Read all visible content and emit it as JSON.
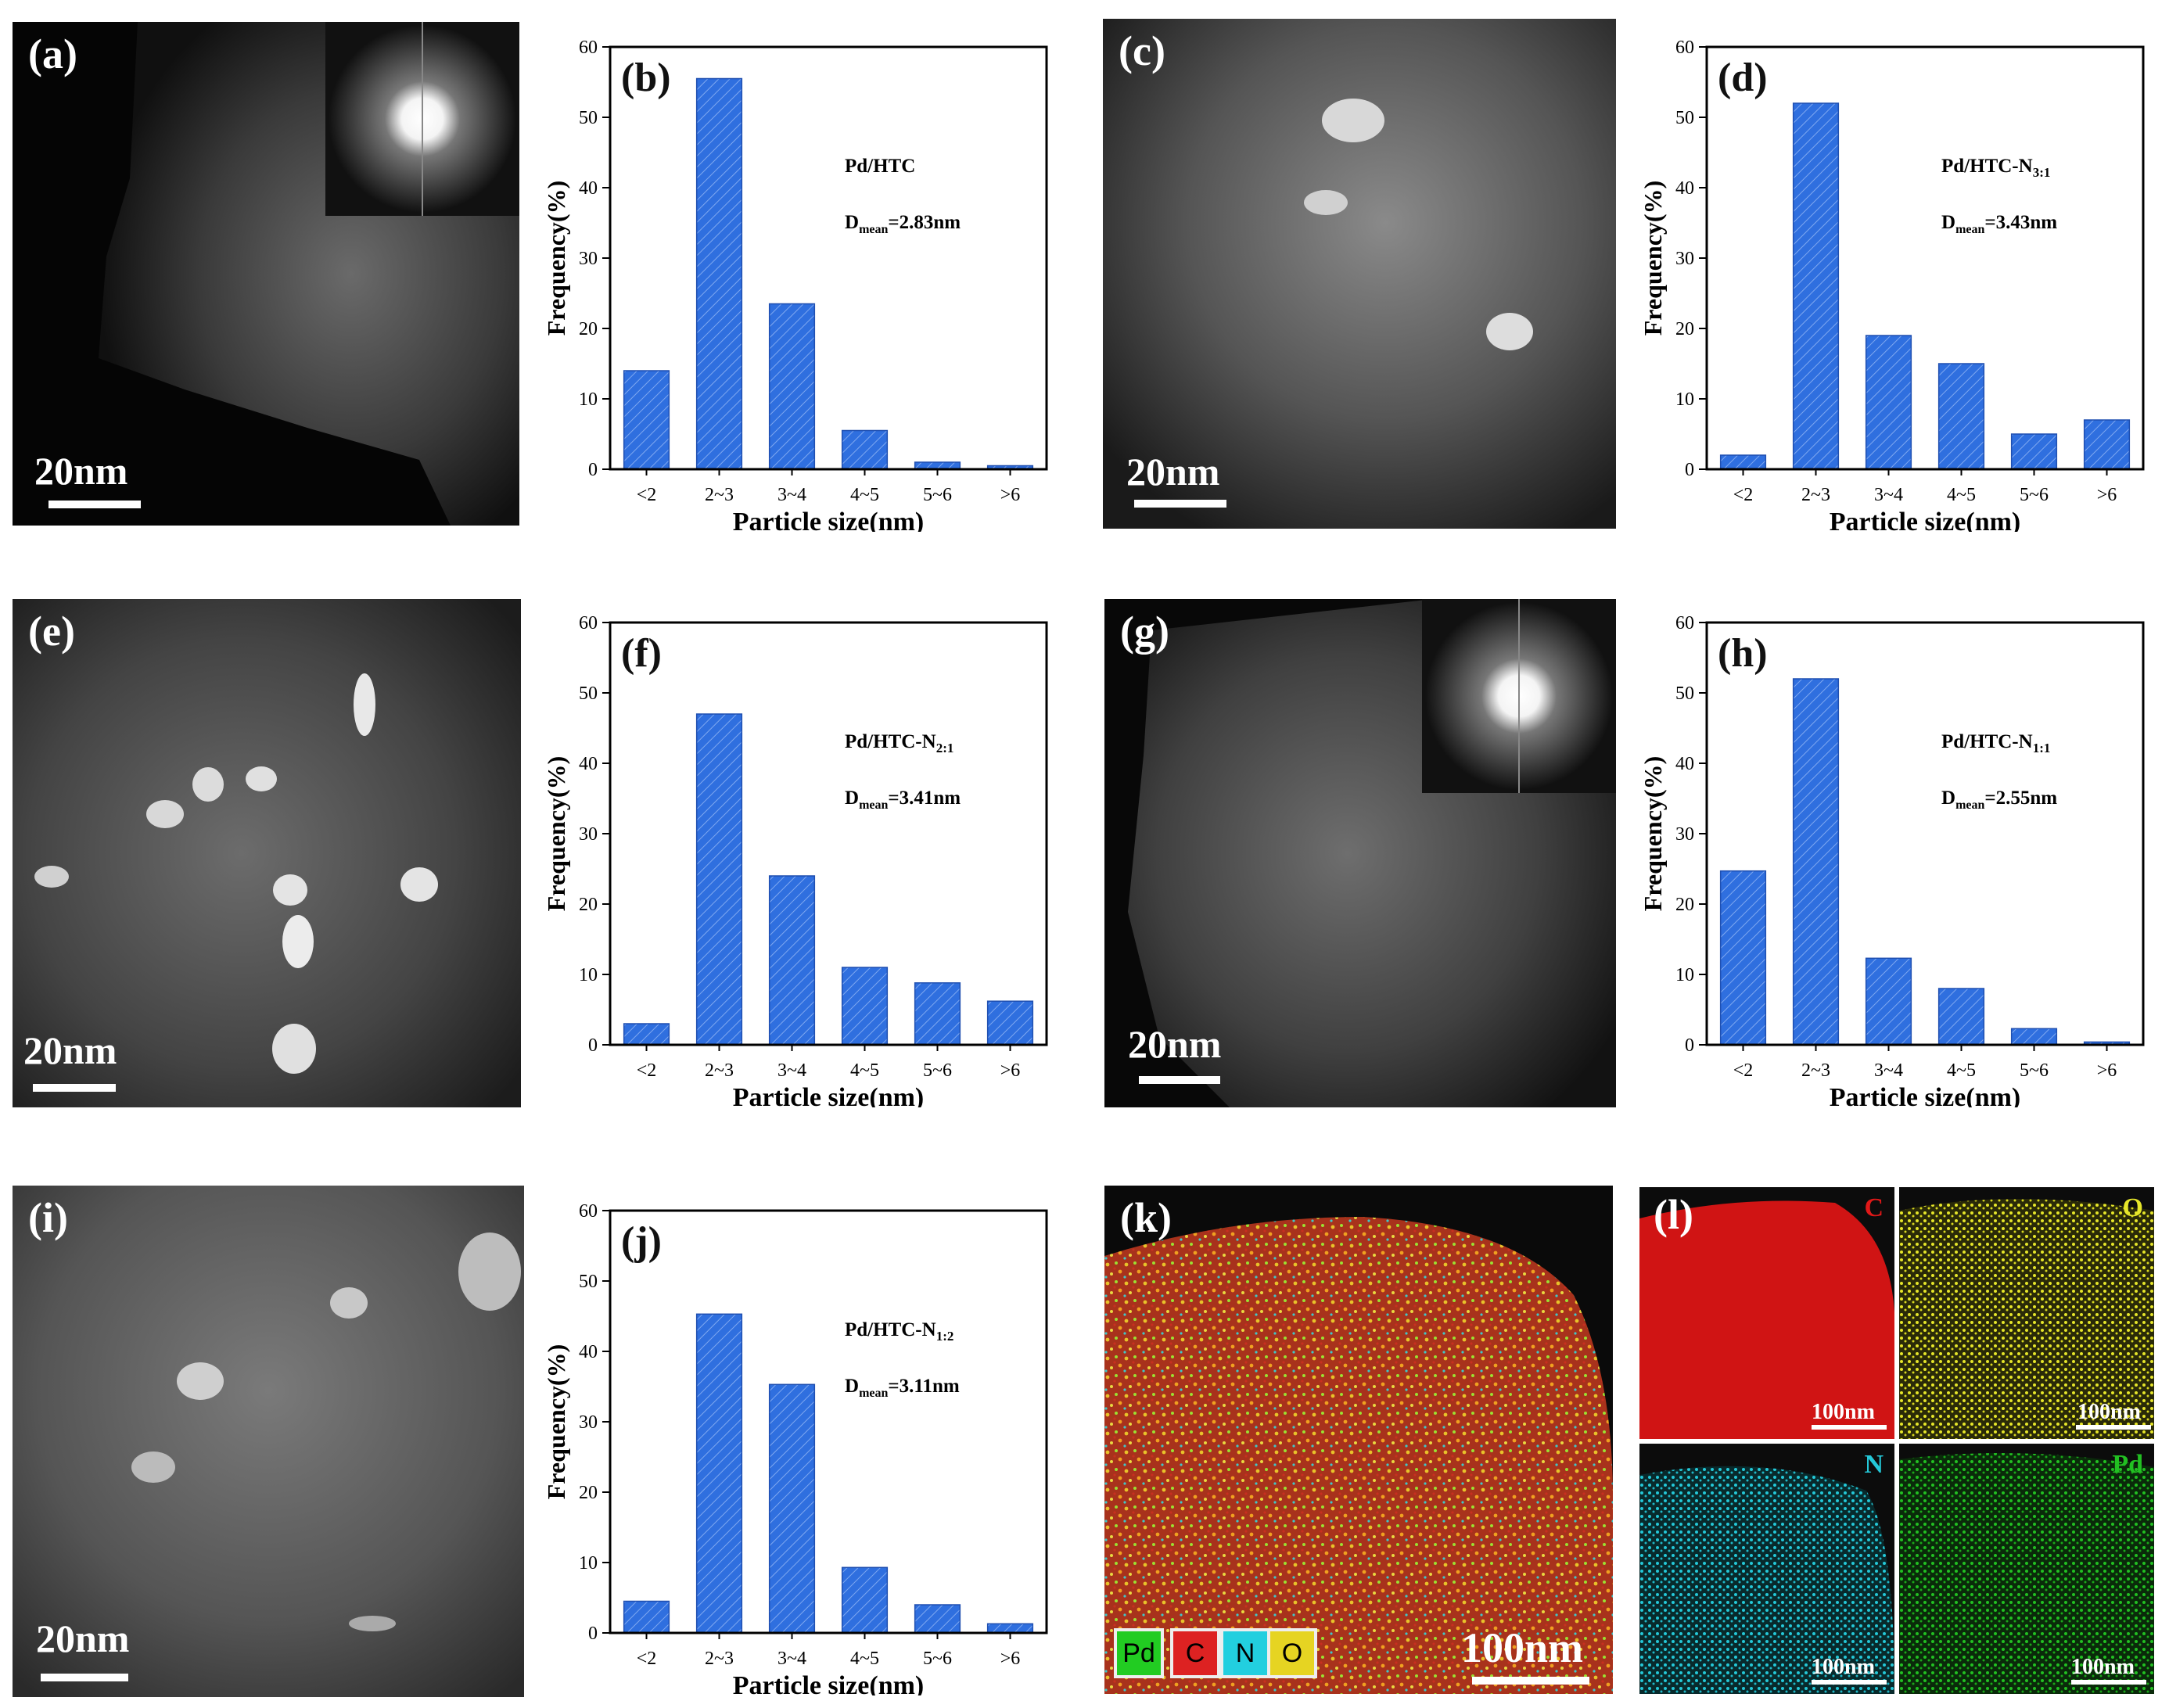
{
  "panels": {
    "a": {
      "label": "(a)",
      "scale": "20nm"
    },
    "c": {
      "label": "(c)",
      "scale": "20nm"
    },
    "e": {
      "label": "(e)",
      "scale": "20nm"
    },
    "g": {
      "label": "(g)",
      "scale": "20nm"
    },
    "i": {
      "label": "(i)",
      "scale": "20nm"
    },
    "k": {
      "label": "(k)",
      "scale": "100nm",
      "legend": [
        "Pd",
        "C",
        "N",
        "O"
      ]
    },
    "l": {
      "label": "(l)",
      "maps": [
        {
          "element": "C",
          "scale": "100nm",
          "color": "#e01818"
        },
        {
          "element": "O",
          "scale": "100nm",
          "color": "#e6e62a"
        },
        {
          "element": "N",
          "scale": "100nm",
          "color": "#24c8d8"
        },
        {
          "element": "Pd",
          "scale": "100nm",
          "color": "#22c022"
        }
      ]
    }
  },
  "chart_data": [
    {
      "id": "b",
      "type": "bar",
      "label": "(b)",
      "categories": [
        "<2",
        "2~3",
        "3~4",
        "4~5",
        "5~6",
        ">6"
      ],
      "values": [
        14,
        55.5,
        23.5,
        5.5,
        1,
        0.5
      ],
      "xlabel": "Particle size(nm)",
      "ylabel": "Frequency(%)",
      "ylim": [
        0,
        60
      ],
      "yticks": [
        0,
        10,
        20,
        30,
        40,
        50,
        60
      ],
      "sample": "Pd/HTC",
      "subscript": "",
      "dmean_value": "=2.83nm",
      "bar_color": "#2f6fdf"
    },
    {
      "id": "d",
      "type": "bar",
      "label": "(d)",
      "categories": [
        "<2",
        "2~3",
        "3~4",
        "4~5",
        "5~6",
        ">6"
      ],
      "values": [
        2,
        52,
        19,
        15,
        5,
        7
      ],
      "xlabel": "Particle size(nm)",
      "ylabel": "Frequency(%)",
      "ylim": [
        0,
        60
      ],
      "yticks": [
        0,
        10,
        20,
        30,
        40,
        50,
        60
      ],
      "sample": "Pd/HTC-N",
      "subscript": "3:1",
      "dmean_value": "=3.43nm",
      "bar_color": "#2f6fdf"
    },
    {
      "id": "f",
      "type": "bar",
      "label": "(f)",
      "categories": [
        "<2",
        "2~3",
        "3~4",
        "4~5",
        "5~6",
        ">6"
      ],
      "values": [
        3,
        47,
        24,
        11,
        8.8,
        6.2
      ],
      "xlabel": "Particle size(nm)",
      "ylabel": "Frequency(%)",
      "ylim": [
        0,
        60
      ],
      "yticks": [
        0,
        10,
        20,
        30,
        40,
        50,
        60
      ],
      "sample": "Pd/HTC-N",
      "subscript": "2:1",
      "dmean_value": "=3.41nm",
      "bar_color": "#2f6fdf"
    },
    {
      "id": "h",
      "type": "bar",
      "label": "(h)",
      "categories": [
        "<2",
        "2~3",
        "3~4",
        "4~5",
        "5~6",
        ">6"
      ],
      "values": [
        24.7,
        52,
        12.3,
        8,
        2.3,
        0.4
      ],
      "xlabel": "Particle size(nm)",
      "ylabel": "Frequency(%)",
      "ylim": [
        0,
        60
      ],
      "yticks": [
        0,
        10,
        20,
        30,
        40,
        50,
        60
      ],
      "sample": "Pd/HTC-N",
      "subscript": "1:1",
      "dmean_value": "=2.55nm",
      "bar_color": "#2f6fdf"
    },
    {
      "id": "j",
      "type": "bar",
      "label": "(j)",
      "categories": [
        "<2",
        "2~3",
        "3~4",
        "4~5",
        "5~6",
        ">6"
      ],
      "values": [
        4.5,
        45.3,
        35.3,
        9.3,
        4,
        1.3
      ],
      "xlabel": "Particle size(nm)",
      "ylabel": "Frequency(%)",
      "ylim": [
        0,
        60
      ],
      "yticks": [
        0,
        10,
        20,
        30,
        40,
        50,
        60
      ],
      "sample": "Pd/HTC-N",
      "subscript": "1:2",
      "dmean_value": "=3.11nm",
      "bar_color": "#2f6fdf"
    }
  ]
}
